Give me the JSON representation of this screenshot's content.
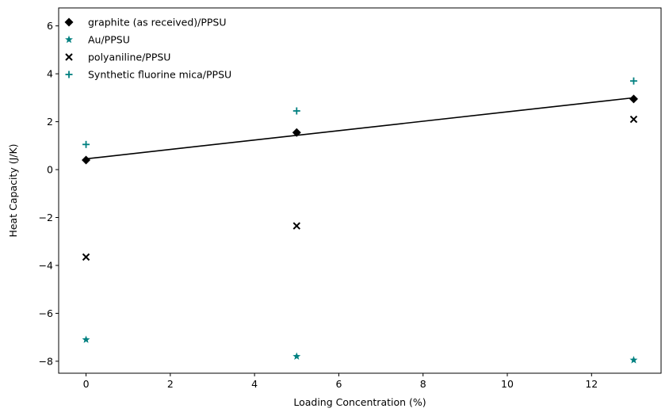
{
  "chart_data": {
    "type": "scatter",
    "title": "",
    "xlabel": "Loading Concentration (%)",
    "ylabel": "Heat Capacity (J/K)",
    "xlim": [
      -0.65,
      13.65
    ],
    "ylim": [
      -8.5,
      6.75
    ],
    "xticks": [
      0,
      2,
      4,
      6,
      8,
      10,
      12
    ],
    "yticks": [
      -8,
      -6,
      -4,
      -2,
      0,
      2,
      4,
      6
    ],
    "grid": false,
    "legend_position": "top-left",
    "series": [
      {
        "name": "graphite (as received)/PPSU",
        "marker": "diamond",
        "color": "#000000",
        "x": [
          0,
          5,
          13
        ],
        "y": [
          0.4,
          1.55,
          2.95
        ]
      },
      {
        "name": "Au/PPSU",
        "marker": "star",
        "color": "#008080",
        "x": [
          0,
          5,
          13
        ],
        "y": [
          -7.1,
          -7.8,
          -7.95
        ]
      },
      {
        "name": "polyaniline/PPSU",
        "marker": "x",
        "color": "#000000",
        "x": [
          0,
          5,
          13
        ],
        "y": [
          -3.65,
          -2.35,
          2.1
        ]
      },
      {
        "name": "Synthetic fluorine mica/PPSU",
        "marker": "plus",
        "color": "#008080",
        "x": [
          0,
          5,
          13
        ],
        "y": [
          1.05,
          2.45,
          3.7
        ]
      }
    ],
    "fit_lines": [
      {
        "series": "graphite (as received)/PPSU",
        "color": "#000000",
        "x": [
          0,
          13
        ],
        "y": [
          0.45,
          3.0
        ]
      }
    ]
  }
}
